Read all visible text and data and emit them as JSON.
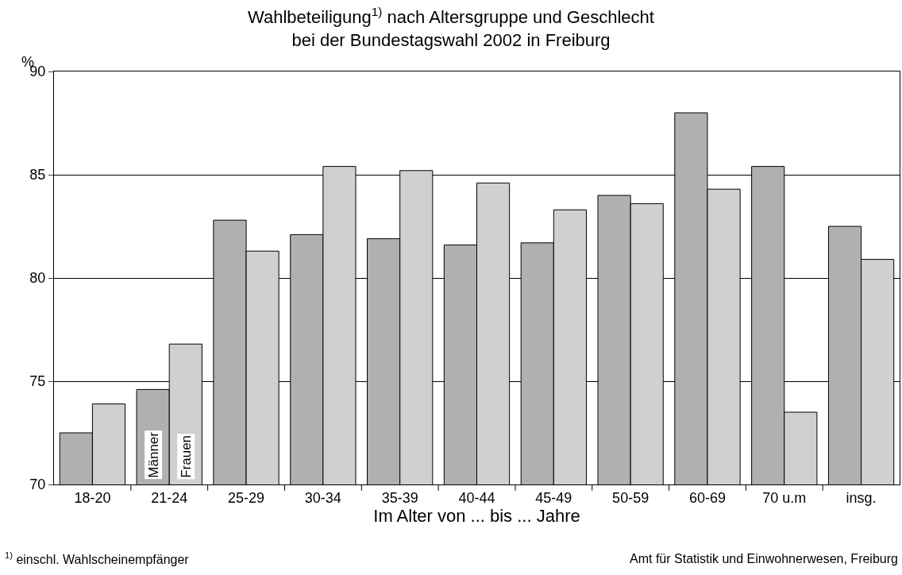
{
  "chart_data": {
    "type": "bar",
    "title": "Wahlbeteiligung$^{1)}$ nach Altersgruppe und Geschlecht\nbei der Bundestagswahl 2002 in Freiburg",
    "xlabel": "Im Alter von ... bis ... Jahre",
    "ylabel": "%",
    "categories": [
      "18-20",
      "21-24",
      "25-29",
      "30-34",
      "35-39",
      "40-44",
      "45-49",
      "50-59",
      "60-69",
      "70 u.m",
      "insg."
    ],
    "series": [
      {
        "name": "Männer",
        "color": "#b0b0b0",
        "values": [
          72.5,
          74.6,
          82.8,
          82.1,
          81.9,
          81.6,
          81.7,
          84.0,
          88.0,
          85.4,
          82.5
        ]
      },
      {
        "name": "Frauen",
        "color": "#d0d0d0",
        "values": [
          73.9,
          76.8,
          81.3,
          85.4,
          85.2,
          84.6,
          83.3,
          83.6,
          84.3,
          73.5,
          80.9
        ]
      }
    ],
    "ylim": [
      70,
      90
    ],
    "yticks": [
      70,
      75,
      80,
      85,
      90
    ],
    "grid": "y",
    "legend": false,
    "annotations": [
      "$^{1)}$ einschl. Wahlscheinempfänger",
      "Amt für Statistik und Einwohnerwesen, Freiburg"
    ]
  }
}
